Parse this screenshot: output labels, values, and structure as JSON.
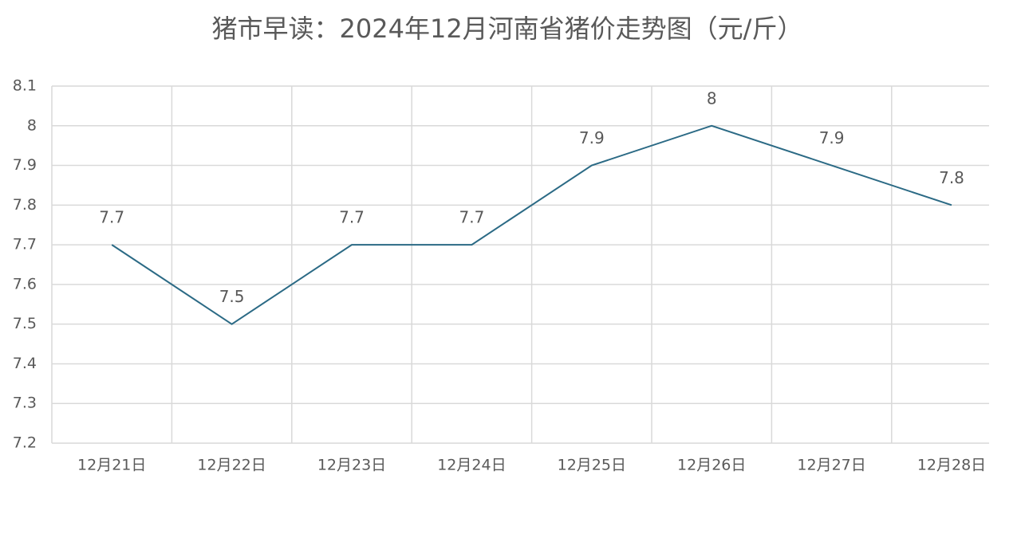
{
  "chart_data": {
    "type": "line",
    "title": "猪市早读：2024年12月河南省猪价走势图（元/斤）",
    "categories": [
      "12月21日",
      "12月22日",
      "12月23日",
      "12月24日",
      "12月25日",
      "12月26日",
      "12月27日",
      "12月28日"
    ],
    "values": [
      7.7,
      7.5,
      7.7,
      7.7,
      7.9,
      8,
      7.9,
      7.8
    ],
    "color": "#2b6a85",
    "ylim": [
      7.2,
      8.1
    ],
    "yticks": [
      7.2,
      7.3,
      7.4,
      7.5,
      7.6,
      7.7,
      7.8,
      7.9,
      8,
      8.1
    ],
    "grid": true,
    "data_labels": true
  }
}
